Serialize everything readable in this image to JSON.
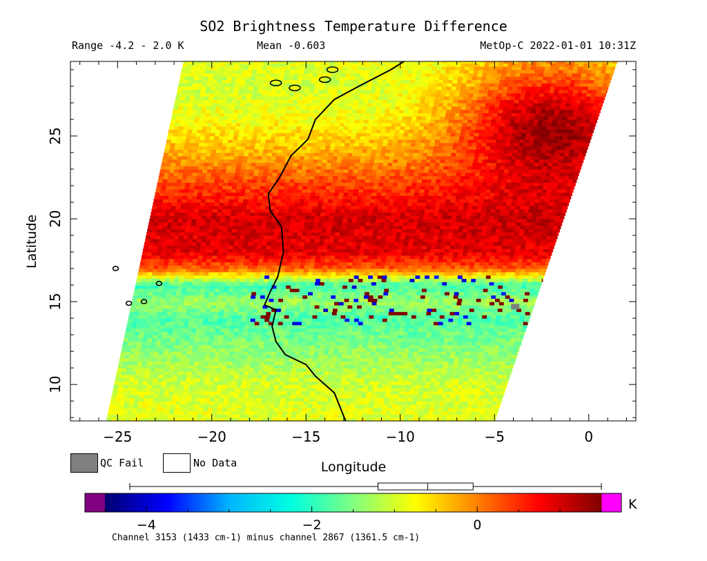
{
  "header": {
    "title": "SO2 Brightness Temperature Difference",
    "range": "Range -4.2 - 2.0 K",
    "mean": "Mean -0.603",
    "satellite_time": "MetOp-C 2022-01-01 10:31Z"
  },
  "legend": {
    "qc_fail_label": "QC Fail",
    "no_data_label": "No Data",
    "qc_fail_color": "#808080",
    "no_data_color": "#ffffff"
  },
  "colorbar": {
    "unit": "K",
    "min": -4.5,
    "max": 1.5,
    "ticks": [
      -4,
      -2,
      0
    ],
    "tick_labels": [
      "−4",
      "−2",
      "0"
    ],
    "under_color": "#800080",
    "over_color": "#ff00ff",
    "stops": [
      "#000070",
      "#0000ff",
      "#00b4ff",
      "#00ffe0",
      "#80ff80",
      "#ffff00",
      "#ff8000",
      "#ff0000",
      "#800000"
    ],
    "boxplot": {
      "whisker_low": -4.2,
      "q1": -1.2,
      "median": -0.6,
      "q3": -0.05,
      "whisker_high": 2.0
    }
  },
  "caption": "Channel 3153 (1433 cm-1) minus channel 2867 (1361.5 cm-1)",
  "chart_data": {
    "type": "heatmap",
    "title": "SO2 Brightness Temperature Difference",
    "xlabel": "Longitude",
    "ylabel": "Latitude",
    "xlim": [
      -27.5,
      2.5
    ],
    "ylim": [
      7.8,
      29.5
    ],
    "x_ticks": [
      -25,
      -20,
      -15,
      -10,
      -5,
      0
    ],
    "x_tick_labels": [
      "−25",
      "−20",
      "−15",
      "−10",
      "−5",
      "0"
    ],
    "y_ticks": [
      10,
      15,
      20,
      25
    ],
    "y_tick_labels": [
      "10",
      "15",
      "20",
      "25"
    ],
    "value_range": [
      -4.2,
      2.0
    ],
    "mean": -0.603,
    "units": "K",
    "swath_edges": {
      "left": [
        [
          -25.6,
          7.8
        ],
        [
          -21.5,
          29.5
        ]
      ],
      "right": [
        [
          -5.0,
          7.8
        ],
        [
          1.5,
          29.5
        ]
      ]
    },
    "field_by_latitude": [
      {
        "lat": 8,
        "value": -0.9
      },
      {
        "lat": 10,
        "value": -1.0
      },
      {
        "lat": 12,
        "value": -1.4
      },
      {
        "lat": 14,
        "value": -1.8
      },
      {
        "lat": 15,
        "value": -1.3
      },
      {
        "lat": 16,
        "value": -1.9
      },
      {
        "lat": 17,
        "value": 0.2
      },
      {
        "lat": 18,
        "value": 0.9
      },
      {
        "lat": 20,
        "value": 1.0
      },
      {
        "lat": 22,
        "value": 0.4
      },
      {
        "lat": 24,
        "value": -0.3
      },
      {
        "lat": 26,
        "value": -0.8
      },
      {
        "lat": 28,
        "value": -1.0
      },
      {
        "lat": 29.5,
        "value": -0.9
      }
    ],
    "northeast_warm_anomaly": {
      "lon": -2,
      "lat": 26,
      "value": 1.3
    },
    "coastline": [
      [
        -12.9,
        7.8
      ],
      [
        -13.5,
        9.5
      ],
      [
        -14.5,
        10.5
      ],
      [
        -15.0,
        11.2
      ],
      [
        -16.1,
        11.8
      ],
      [
        -16.6,
        12.6
      ],
      [
        -16.8,
        13.5
      ],
      [
        -16.6,
        14.5
      ],
      [
        -17.2,
        14.8
      ],
      [
        -16.9,
        15.6
      ],
      [
        -16.5,
        16.5
      ],
      [
        -16.2,
        18.0
      ],
      [
        -16.3,
        19.5
      ],
      [
        -16.9,
        20.5
      ],
      [
        -17.0,
        21.5
      ],
      [
        -16.4,
        22.5
      ],
      [
        -15.8,
        23.8
      ],
      [
        -14.9,
        24.8
      ],
      [
        -14.5,
        26.0
      ],
      [
        -13.5,
        27.2
      ],
      [
        -12.2,
        28.0
      ],
      [
        -10.5,
        29.0
      ],
      [
        -9.8,
        29.5
      ]
    ],
    "islands": [
      {
        "name": "Lanzarote",
        "lon": -13.6,
        "lat": 29.0
      },
      {
        "name": "Fuerteventura",
        "lon": -14.0,
        "lat": 28.4
      },
      {
        "name": "Gran Canaria",
        "lon": -15.6,
        "lat": 27.9
      },
      {
        "name": "Tenerife",
        "lon": -16.6,
        "lat": 28.2
      },
      {
        "name": "Santo Antao",
        "lon": -25.1,
        "lat": 17.0
      },
      {
        "name": "Boa Vista",
        "lon": -22.8,
        "lat": 16.1
      },
      {
        "name": "Santiago",
        "lon": -23.6,
        "lat": 15.0
      },
      {
        "name": "Fogo",
        "lon": -24.4,
        "lat": 14.9
      }
    ],
    "qc_fail_pixels": [
      {
        "lon": -3.9,
        "lat": 14.7
      }
    ]
  }
}
